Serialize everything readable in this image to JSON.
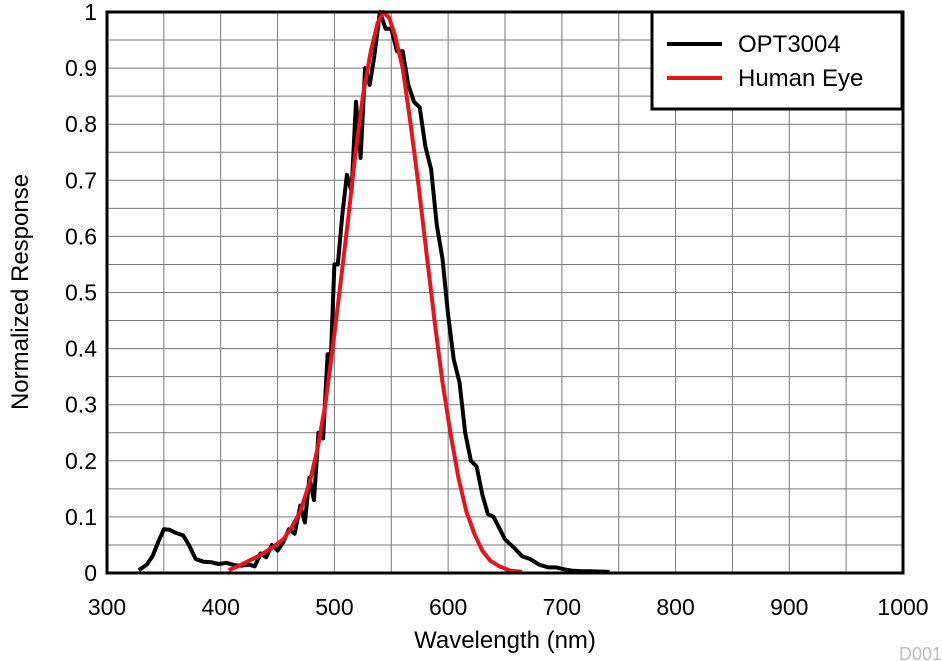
{
  "chart_data": {
    "type": "line",
    "xlabel": "Wavelength (nm)",
    "ylabel": "Normalized Response",
    "xlim": [
      300,
      1000
    ],
    "ylim": [
      0,
      1
    ],
    "x_ticks": [
      "300",
      "400",
      "500",
      "600",
      "700",
      "800",
      "900",
      "1000"
    ],
    "y_ticks": [
      "0",
      "0.1",
      "0.2",
      "0.3",
      "0.4",
      "0.5",
      "0.6",
      "0.7",
      "0.8",
      "0.9",
      "1"
    ],
    "grid": true,
    "legend_position": "top-right",
    "watermark": "D001",
    "series": [
      {
        "name": "OPT3004",
        "color": "#000000",
        "points": [
          [
            328,
            0.005
          ],
          [
            335,
            0.015
          ],
          [
            340,
            0.03
          ],
          [
            345,
            0.055
          ],
          [
            350,
            0.078
          ],
          [
            355,
            0.077
          ],
          [
            360,
            0.072
          ],
          [
            367,
            0.067
          ],
          [
            372,
            0.05
          ],
          [
            378,
            0.025
          ],
          [
            385,
            0.02
          ],
          [
            392,
            0.019
          ],
          [
            398,
            0.016
          ],
          [
            405,
            0.018
          ],
          [
            412,
            0.014
          ],
          [
            418,
            0.013
          ],
          [
            425,
            0.015
          ],
          [
            430,
            0.012
          ],
          [
            435,
            0.035
          ],
          [
            440,
            0.028
          ],
          [
            445,
            0.05
          ],
          [
            450,
            0.04
          ],
          [
            455,
            0.055
          ],
          [
            460,
            0.078
          ],
          [
            465,
            0.07
          ],
          [
            470,
            0.12
          ],
          [
            474,
            0.09
          ],
          [
            478,
            0.17
          ],
          [
            482,
            0.13
          ],
          [
            486,
            0.25
          ],
          [
            490,
            0.24
          ],
          [
            494,
            0.39
          ],
          [
            497,
            0.39
          ],
          [
            500,
            0.55
          ],
          [
            503,
            0.55
          ],
          [
            507,
            0.64
          ],
          [
            511,
            0.71
          ],
          [
            515,
            0.68
          ],
          [
            519,
            0.84
          ],
          [
            523,
            0.74
          ],
          [
            527,
            0.9
          ],
          [
            531,
            0.87
          ],
          [
            535,
            0.92
          ],
          [
            540,
            1.0
          ],
          [
            545,
            0.97
          ],
          [
            550,
            0.97
          ],
          [
            555,
            0.93
          ],
          [
            560,
            0.93
          ],
          [
            565,
            0.87
          ],
          [
            570,
            0.84
          ],
          [
            575,
            0.83
          ],
          [
            580,
            0.76
          ],
          [
            585,
            0.72
          ],
          [
            590,
            0.62
          ],
          [
            595,
            0.56
          ],
          [
            600,
            0.46
          ],
          [
            605,
            0.38
          ],
          [
            610,
            0.34
          ],
          [
            615,
            0.25
          ],
          [
            620,
            0.2
          ],
          [
            625,
            0.19
          ],
          [
            630,
            0.14
          ],
          [
            635,
            0.105
          ],
          [
            640,
            0.1
          ],
          [
            645,
            0.08
          ],
          [
            650,
            0.06
          ],
          [
            658,
            0.045
          ],
          [
            665,
            0.03
          ],
          [
            672,
            0.025
          ],
          [
            680,
            0.015
          ],
          [
            688,
            0.01
          ],
          [
            695,
            0.01
          ],
          [
            703,
            0.006
          ],
          [
            710,
            0.004
          ],
          [
            718,
            0.003
          ],
          [
            725,
            0.003
          ],
          [
            742,
            0.002
          ]
        ]
      },
      {
        "name": "Human Eye",
        "color": "#e8141b",
        "points": [
          [
            407,
            0.005
          ],
          [
            415,
            0.012
          ],
          [
            425,
            0.022
          ],
          [
            435,
            0.032
          ],
          [
            445,
            0.045
          ],
          [
            455,
            0.06
          ],
          [
            462,
            0.08
          ],
          [
            470,
            0.11
          ],
          [
            478,
            0.16
          ],
          [
            485,
            0.22
          ],
          [
            492,
            0.3
          ],
          [
            499,
            0.41
          ],
          [
            505,
            0.51
          ],
          [
            512,
            0.63
          ],
          [
            518,
            0.74
          ],
          [
            525,
            0.85
          ],
          [
            532,
            0.93
          ],
          [
            538,
            0.98
          ],
          [
            543,
            1.0
          ],
          [
            548,
            0.99
          ],
          [
            553,
            0.96
          ],
          [
            560,
            0.9
          ],
          [
            567,
            0.8
          ],
          [
            574,
            0.69
          ],
          [
            581,
            0.57
          ],
          [
            588,
            0.45
          ],
          [
            595,
            0.34
          ],
          [
            602,
            0.25
          ],
          [
            609,
            0.17
          ],
          [
            616,
            0.11
          ],
          [
            623,
            0.07
          ],
          [
            630,
            0.04
          ],
          [
            637,
            0.022
          ],
          [
            645,
            0.012
          ],
          [
            655,
            0.004
          ],
          [
            665,
            0.002
          ]
        ]
      }
    ]
  }
}
